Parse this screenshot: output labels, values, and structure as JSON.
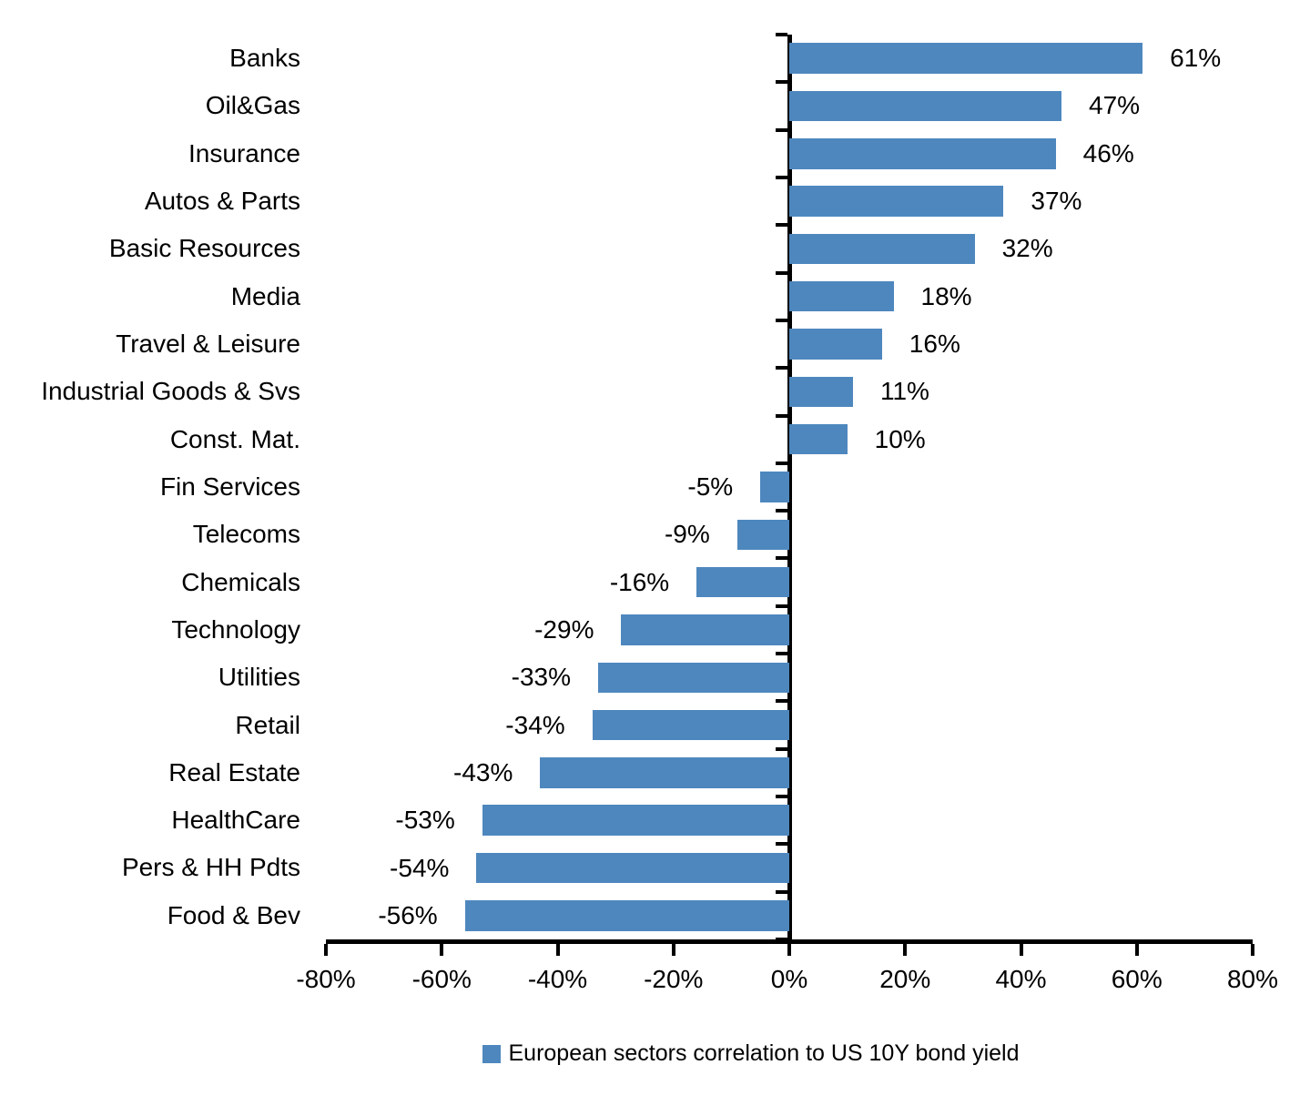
{
  "chart_data": {
    "type": "bar",
    "orientation": "horizontal",
    "title": "",
    "categories": [
      "Banks",
      "Oil&Gas",
      "Insurance",
      "Autos & Parts",
      "Basic Resources",
      "Media",
      "Travel & Leisure",
      "Industrial Goods & Svs",
      "Const. Mat.",
      "Fin Services",
      "Telecoms",
      "Chemicals",
      "Technology",
      "Utilities",
      "Retail",
      "Real Estate",
      "HealthCare",
      "Pers & HH Pdts",
      "Food & Bev"
    ],
    "values": [
      61,
      47,
      46,
      37,
      32,
      18,
      16,
      11,
      10,
      -5,
      -9,
      -16,
      -29,
      -33,
      -34,
      -43,
      -53,
      -54,
      -56
    ],
    "value_labels": [
      "61%",
      "47%",
      "46%",
      "37%",
      "32%",
      "18%",
      "16%",
      "11%",
      "10%",
      "-5%",
      "-9%",
      "-16%",
      "-29%",
      "-33%",
      "-34%",
      "-43%",
      "-53%",
      "-54%",
      "-56%"
    ],
    "xlim": [
      -80,
      80
    ],
    "x_ticks": [
      -80,
      -60,
      -40,
      -20,
      0,
      20,
      40,
      60,
      80
    ],
    "x_tick_labels": [
      "-80%",
      "-60%",
      "-40%",
      "-20%",
      "0%",
      "20%",
      "40%",
      "60%",
      "80%"
    ],
    "grid": false,
    "bar_color": "#4E87BE",
    "axis_color": "#000000",
    "legend": {
      "position": "bottom",
      "items": [
        {
          "label": "European sectors correlation to US 10Y bond yield",
          "color": "#4E87BE"
        }
      ]
    }
  }
}
